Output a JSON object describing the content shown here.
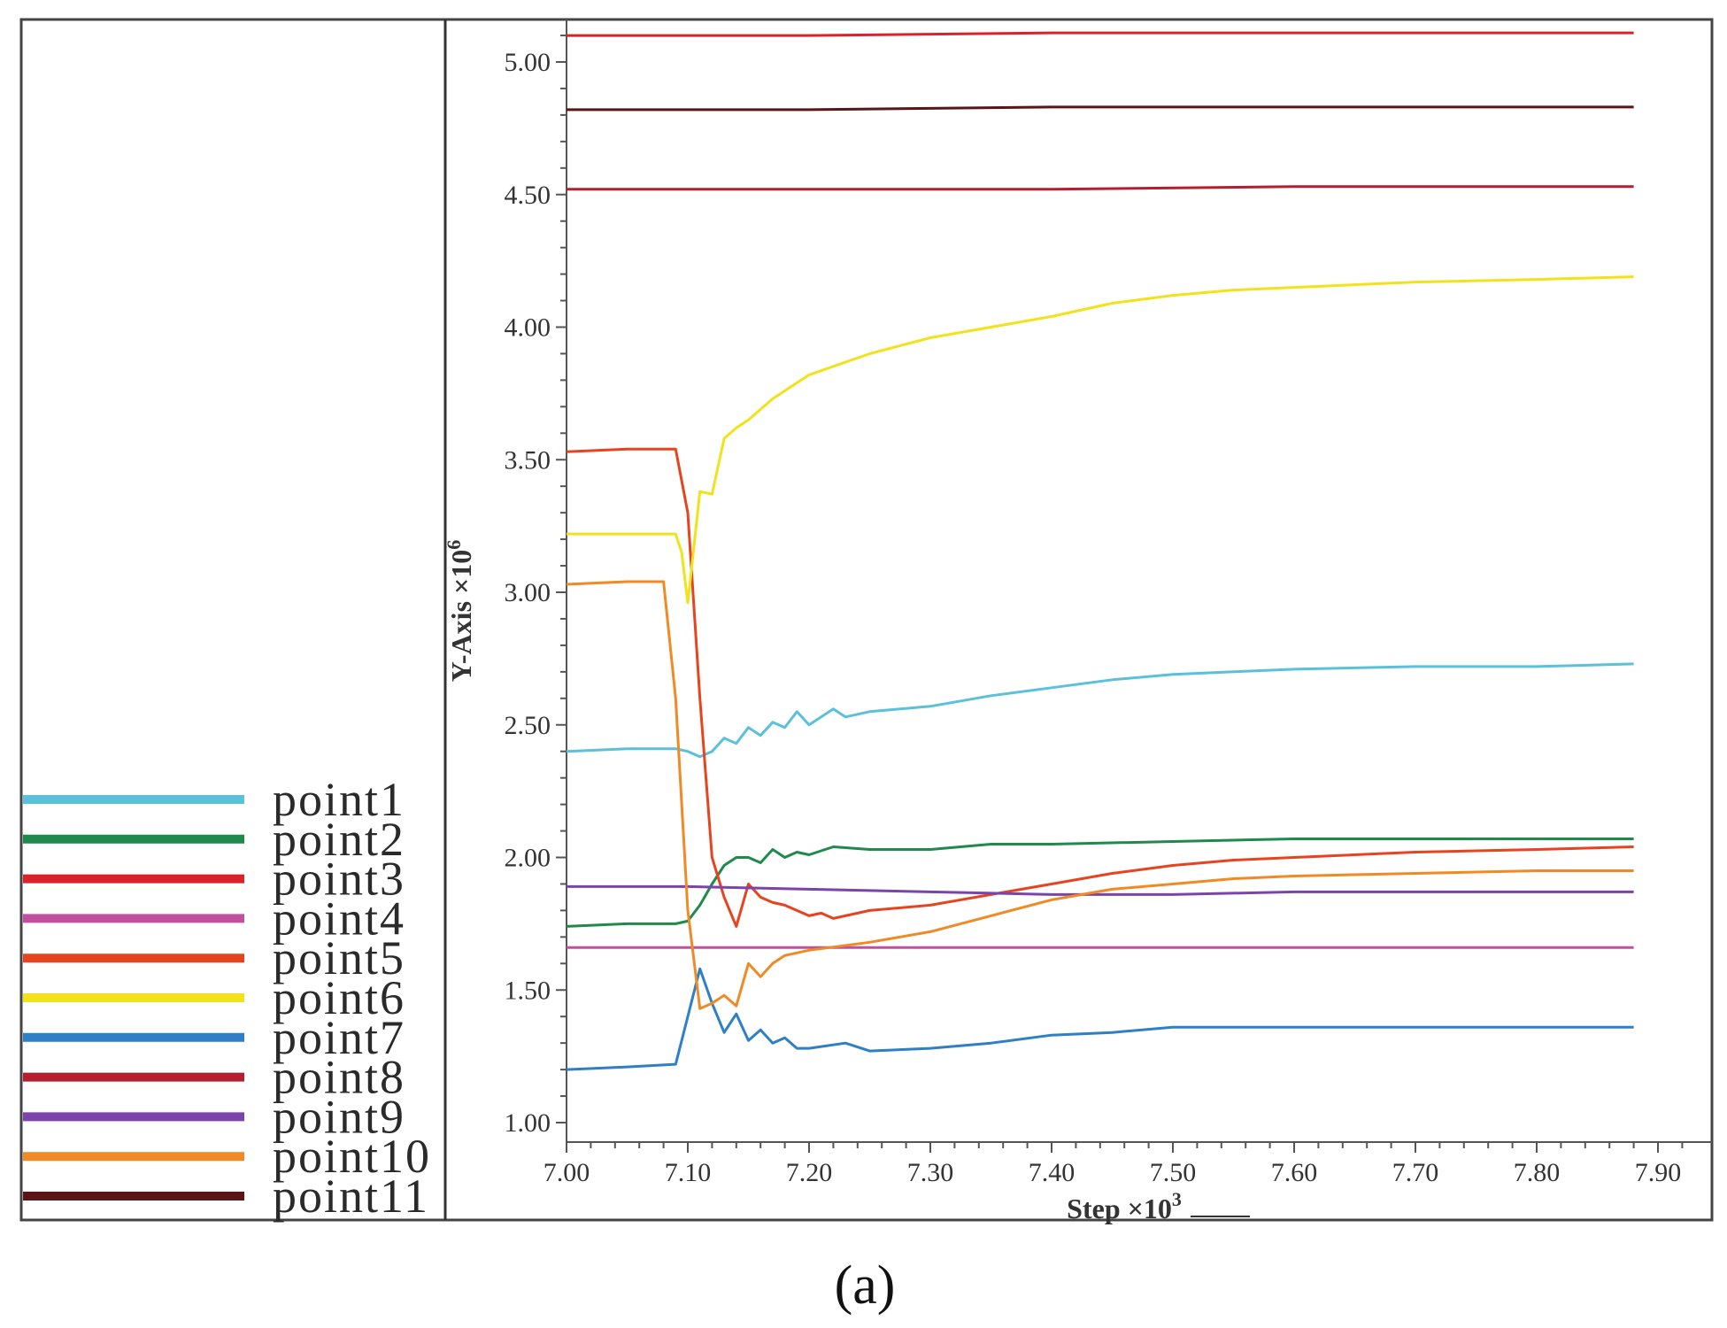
{
  "figure_label": "(a)",
  "chart_data": {
    "type": "line",
    "xlabel": "Step ×10",
    "xlabel_exponent": "3",
    "ylabel": "Y-Axis ×10",
    "ylabel_exponent": "6",
    "xlim": [
      7.0,
      7.92
    ],
    "ylim": [
      0.98,
      5.12
    ],
    "x_ticks": [
      7.0,
      7.1,
      7.2,
      7.3,
      7.4,
      7.5,
      7.6,
      7.7,
      7.8,
      7.9
    ],
    "x_tick_labels": [
      "7.00",
      "7.10",
      "7.20",
      "7.30",
      "7.40",
      "7.50",
      "7.60",
      "7.70",
      "7.80",
      "7.90"
    ],
    "y_ticks": [
      1.0,
      1.5,
      2.0,
      2.5,
      3.0,
      3.5,
      4.0,
      4.5,
      5.0
    ],
    "y_tick_labels": [
      "1.00",
      "1.50",
      "2.00",
      "2.50",
      "3.00",
      "3.50",
      "4.00",
      "4.50",
      "5.00"
    ],
    "legend_position": "bottom-left",
    "series": [
      {
        "name": "point1",
        "color": "#5bc0d9",
        "x": [
          7.0,
          7.05,
          7.09,
          7.1,
          7.11,
          7.12,
          7.13,
          7.14,
          7.15,
          7.16,
          7.17,
          7.18,
          7.19,
          7.2,
          7.21,
          7.22,
          7.23,
          7.25,
          7.3,
          7.35,
          7.4,
          7.45,
          7.5,
          7.55,
          7.6,
          7.7,
          7.8,
          7.88
        ],
        "y": [
          2.4,
          2.41,
          2.41,
          2.4,
          2.38,
          2.4,
          2.45,
          2.43,
          2.49,
          2.46,
          2.51,
          2.49,
          2.55,
          2.5,
          2.53,
          2.56,
          2.53,
          2.55,
          2.57,
          2.61,
          2.64,
          2.67,
          2.69,
          2.7,
          2.71,
          2.72,
          2.72,
          2.73
        ]
      },
      {
        "name": "point2",
        "color": "#1f8a4c",
        "x": [
          7.0,
          7.05,
          7.09,
          7.1,
          7.11,
          7.12,
          7.13,
          7.14,
          7.15,
          7.16,
          7.17,
          7.18,
          7.19,
          7.2,
          7.22,
          7.25,
          7.3,
          7.35,
          7.4,
          7.5,
          7.6,
          7.7,
          7.8,
          7.88
        ],
        "y": [
          1.74,
          1.75,
          1.75,
          1.76,
          1.82,
          1.9,
          1.97,
          2.0,
          2.0,
          1.98,
          2.03,
          2.0,
          2.02,
          2.01,
          2.04,
          2.03,
          2.03,
          2.05,
          2.05,
          2.06,
          2.07,
          2.07,
          2.07,
          2.07
        ]
      },
      {
        "name": "point3",
        "color": "#d8232a",
        "x": [
          7.0,
          7.2,
          7.4,
          7.6,
          7.88
        ],
        "y": [
          5.1,
          5.1,
          5.11,
          5.11,
          5.11
        ]
      },
      {
        "name": "point4",
        "color": "#c0509f",
        "x": [
          7.0,
          7.88
        ],
        "y": [
          1.66,
          1.66
        ]
      },
      {
        "name": "point5",
        "color": "#e8431f",
        "x": [
          7.0,
          7.05,
          7.09,
          7.1,
          7.11,
          7.12,
          7.13,
          7.14,
          7.15,
          7.16,
          7.17,
          7.18,
          7.19,
          7.2,
          7.21,
          7.22,
          7.23,
          7.25,
          7.3,
          7.35,
          7.4,
          7.45,
          7.5,
          7.55,
          7.6,
          7.7,
          7.8,
          7.88
        ],
        "y": [
          3.53,
          3.54,
          3.54,
          3.3,
          2.6,
          2.0,
          1.85,
          1.74,
          1.9,
          1.85,
          1.83,
          1.82,
          1.8,
          1.78,
          1.79,
          1.77,
          1.78,
          1.8,
          1.82,
          1.86,
          1.9,
          1.94,
          1.97,
          1.99,
          2.0,
          2.02,
          2.03,
          2.04
        ]
      },
      {
        "name": "point6",
        "color": "#f2e21b",
        "x": [
          7.0,
          7.05,
          7.09,
          7.095,
          7.1,
          7.11,
          7.12,
          7.13,
          7.14,
          7.15,
          7.17,
          7.2,
          7.25,
          7.3,
          7.35,
          7.4,
          7.45,
          7.5,
          7.55,
          7.6,
          7.7,
          7.8,
          7.88
        ],
        "y": [
          3.22,
          3.22,
          3.22,
          3.15,
          2.96,
          3.38,
          3.37,
          3.58,
          3.62,
          3.65,
          3.73,
          3.82,
          3.9,
          3.96,
          4.0,
          4.04,
          4.09,
          4.12,
          4.14,
          4.15,
          4.17,
          4.18,
          4.19
        ]
      },
      {
        "name": "point7",
        "color": "#2e7fc6",
        "x": [
          7.0,
          7.05,
          7.09,
          7.1,
          7.11,
          7.12,
          7.13,
          7.14,
          7.15,
          7.16,
          7.17,
          7.18,
          7.19,
          7.2,
          7.23,
          7.25,
          7.3,
          7.35,
          7.4,
          7.45,
          7.5,
          7.6,
          7.7,
          7.8,
          7.88
        ],
        "y": [
          1.2,
          1.21,
          1.22,
          1.4,
          1.58,
          1.45,
          1.34,
          1.41,
          1.31,
          1.35,
          1.3,
          1.32,
          1.28,
          1.28,
          1.3,
          1.27,
          1.28,
          1.3,
          1.33,
          1.34,
          1.36,
          1.36,
          1.36,
          1.36,
          1.36
        ]
      },
      {
        "name": "point8",
        "color": "#b31f2e",
        "x": [
          7.0,
          7.2,
          7.4,
          7.6,
          7.88
        ],
        "y": [
          4.52,
          4.52,
          4.52,
          4.53,
          4.53
        ]
      },
      {
        "name": "point9",
        "color": "#7a44ab",
        "x": [
          7.0,
          7.1,
          7.2,
          7.3,
          7.4,
          7.5,
          7.6,
          7.7,
          7.88
        ],
        "y": [
          1.89,
          1.89,
          1.88,
          1.87,
          1.86,
          1.86,
          1.87,
          1.87,
          1.87
        ]
      },
      {
        "name": "point10",
        "color": "#f08a24",
        "x": [
          7.0,
          7.05,
          7.08,
          7.09,
          7.1,
          7.11,
          7.12,
          7.13,
          7.14,
          7.15,
          7.16,
          7.17,
          7.18,
          7.2,
          7.25,
          7.3,
          7.35,
          7.4,
          7.45,
          7.5,
          7.55,
          7.6,
          7.7,
          7.8,
          7.88
        ],
        "y": [
          3.03,
          3.04,
          3.04,
          2.6,
          1.8,
          1.43,
          1.45,
          1.48,
          1.44,
          1.6,
          1.55,
          1.6,
          1.63,
          1.65,
          1.68,
          1.72,
          1.78,
          1.84,
          1.88,
          1.9,
          1.92,
          1.93,
          1.94,
          1.95,
          1.95
        ]
      },
      {
        "name": "point11",
        "color": "#5a1616",
        "x": [
          7.0,
          7.2,
          7.4,
          7.6,
          7.88
        ],
        "y": [
          4.82,
          4.82,
          4.83,
          4.83,
          4.83
        ]
      }
    ]
  }
}
